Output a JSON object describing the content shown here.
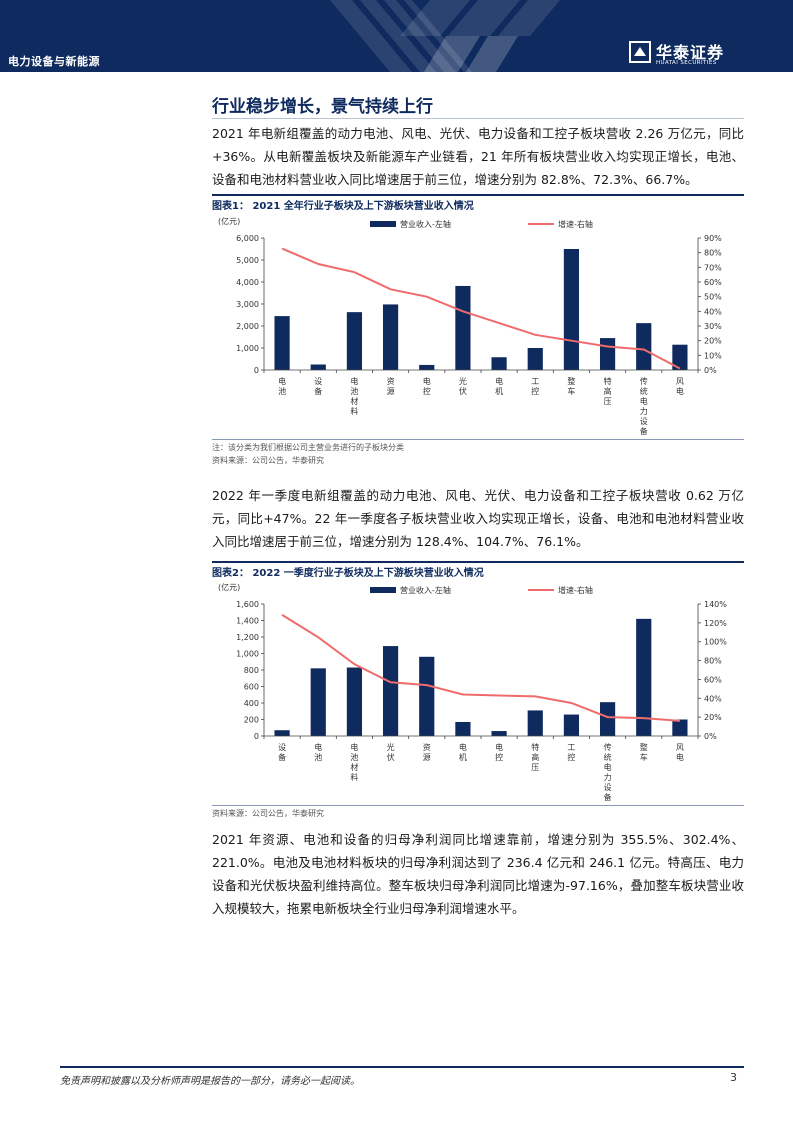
{
  "header": {
    "section": "电力设备与新能源",
    "logo_name": "华泰证券",
    "logo_sub": "HUATAI SECURITIES"
  },
  "heading": "行业稳步增长，景气持续上行",
  "paragraphs": [
    "2021 年电新组覆盖的动力电池、风电、光伏、电力设备和工控子板块营收 2.26 万亿元，同比+36%。从电新覆盖板块及新能源车产业链看，21 年所有板块营业收入均实现正增长，电池、设备和电池材料营业收入同比增速居于前三位，增速分别为 82.8%、72.3%、66.7%。",
    "2022 年一季度电新组覆盖的动力电池、风电、光伏、电力设备和工控子板块营收 0.62 万亿元，同比+47%。22 年一季度各子板块营业收入均实现正增长，设备、电池和电池材料营业收入同比增速居于前三位，增速分别为 128.4%、104.7%、76.1%。",
    "2021 年资源、电池和设备的归母净利润同比增速靠前，增速分别为 355.5%、302.4%、221.0%。电池及电池材料板块的归母净利润达到了 236.4 亿元和 246.1 亿元。特高压、电力设备和光伏板块盈利维持高位。整车板块归母净利润同比增速为-97.16%，叠加整车板块营业收入规模较大，拖累电新板块全行业归母净利润增速水平。"
  ],
  "figures": [
    {
      "title": "图表1：  2021 全年行业子板块及上下游板块营业收入情况",
      "notes": [
        "注：该分类为我们根据公司主营业务进行的子板块分类",
        "资料来源：公司公告，华泰研究"
      ]
    },
    {
      "title": "图表2：  2022 一季度行业子板块及上下游板块营业收入情况",
      "notes": [
        "资料来源：公司公告，华泰研究"
      ]
    }
  ],
  "chart_data": [
    {
      "type": "bar",
      "unit_label": "(亿元)",
      "categories": [
        "电池",
        "设备",
        "电池材料",
        "资源",
        "电控",
        "光伏",
        "电机",
        "工控",
        "整车",
        "特高压",
        "传统电力设备",
        "风电"
      ],
      "series": [
        {
          "name": "营业收入-左轴",
          "kind": "bar",
          "axis": "left",
          "color": "#0e2a5e",
          "values": [
            2450,
            250,
            2630,
            2980,
            230,
            3820,
            580,
            1000,
            5500,
            1450,
            2130,
            1150
          ]
        },
        {
          "name": "增速-右轴",
          "kind": "line",
          "axis": "right",
          "color": "#f06b6b",
          "values": [
            82.8,
            72.3,
            66.7,
            55,
            50,
            40,
            32,
            24,
            20,
            16,
            14,
            1
          ]
        }
      ],
      "left_axis": {
        "min": 0,
        "max": 6000,
        "ticks": [
          "0",
          "1,000",
          "2,000",
          "3,000",
          "4,000",
          "5,000",
          "6,000"
        ]
      },
      "right_axis": {
        "min": 0,
        "max": 90,
        "ticks": [
          "0%",
          "10%",
          "20%",
          "30%",
          "40%",
          "50%",
          "60%",
          "70%",
          "80%",
          "90%"
        ]
      },
      "legend": "top"
    },
    {
      "type": "bar",
      "unit_label": "(亿元)",
      "categories": [
        "设备",
        "电池",
        "电池材料",
        "光伏",
        "资源",
        "电机",
        "电控",
        "特高压",
        "工控",
        "传统电力设备",
        "整车",
        "风电"
      ],
      "series": [
        {
          "name": "营业收入-左轴",
          "kind": "bar",
          "axis": "left",
          "color": "#0e2a5e",
          "values": [
            70,
            820,
            830,
            1090,
            960,
            170,
            60,
            310,
            260,
            410,
            1420,
            200
          ]
        },
        {
          "name": "增速-右轴",
          "kind": "line",
          "axis": "right",
          "color": "#f06b6b",
          "values": [
            128.4,
            104.7,
            76.1,
            57,
            54,
            44,
            43,
            42,
            35,
            20,
            19,
            16
          ]
        }
      ],
      "left_axis": {
        "min": 0,
        "max": 1600,
        "ticks": [
          "0",
          "200",
          "400",
          "600",
          "800",
          "1,000",
          "1,200",
          "1,400",
          "1,600"
        ]
      },
      "right_axis": {
        "min": 0,
        "max": 140,
        "ticks": [
          "0%",
          "20%",
          "40%",
          "60%",
          "80%",
          "100%",
          "120%",
          "140%"
        ]
      },
      "legend": "top"
    }
  ],
  "footer": {
    "disclaimer": "免责声明和披露以及分析师声明是报告的一部分，请务必一起阅读。",
    "page": "3"
  }
}
